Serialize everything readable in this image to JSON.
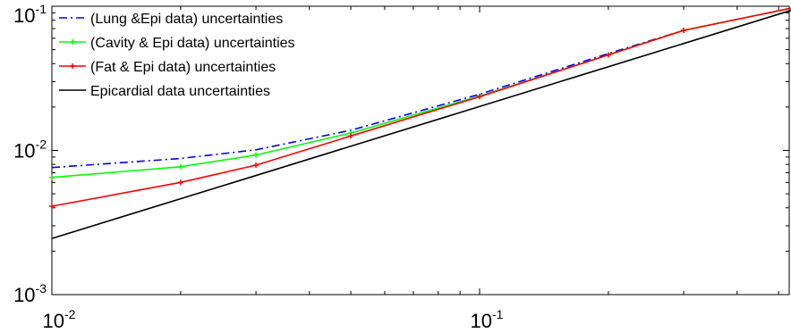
{
  "chart_data": {
    "type": "line",
    "xscale": "log",
    "yscale": "log",
    "xlim": [
      0.01,
      0.6
    ],
    "ylim": [
      0.001,
      0.1
    ],
    "grid": false,
    "legend_placement": "top-left",
    "title": "",
    "xlabel": "",
    "ylabel": "",
    "x_tick_labels": [
      {
        "value": 0.01,
        "base": "10",
        "exp": "-2"
      },
      {
        "value": 0.1,
        "base": "10",
        "exp": "-1"
      }
    ],
    "y_tick_labels": [
      {
        "value": 0.001,
        "base": "10",
        "exp": "-3"
      },
      {
        "value": 0.01,
        "base": "10",
        "exp": "-2"
      },
      {
        "value": 0.1,
        "base": "10",
        "exp": "-1"
      }
    ],
    "series": [
      {
        "name": "(Lung &Epi data) uncertainties",
        "color": "#0000ff",
        "dash": "dashdot",
        "marker": "none",
        "x": [
          0.01,
          0.02,
          0.03,
          0.05,
          0.1,
          0.2,
          0.3,
          0.6
        ],
        "y": [
          0.0076,
          0.0088,
          0.0101,
          0.0138,
          0.0245,
          0.047,
          0.068,
          0.104
        ]
      },
      {
        "name": "(Cavity & Epi data) uncertainties",
        "color": "#00ff00",
        "dash": "solid",
        "marker": "plus",
        "x": [
          0.01,
          0.02,
          0.03,
          0.05,
          0.1,
          0.2,
          0.3,
          0.6
        ],
        "y": [
          0.0065,
          0.0077,
          0.0093,
          0.0132,
          0.0238,
          0.046,
          0.068,
          0.104
        ]
      },
      {
        "name": "(Fat & Epi data) uncertainties",
        "color": "#ff0000",
        "dash": "solid",
        "marker": "plus",
        "x": [
          0.01,
          0.02,
          0.03,
          0.05,
          0.1,
          0.2,
          0.3,
          0.6
        ],
        "y": [
          0.0041,
          0.006,
          0.0079,
          0.0126,
          0.0236,
          0.046,
          0.068,
          0.104
        ]
      },
      {
        "name": "Epicardial data uncertainties",
        "color": "#000000",
        "dash": "solid",
        "marker": "none",
        "x": [
          0.01,
          0.6
        ],
        "y": [
          0.00245,
          0.104
        ]
      }
    ]
  }
}
